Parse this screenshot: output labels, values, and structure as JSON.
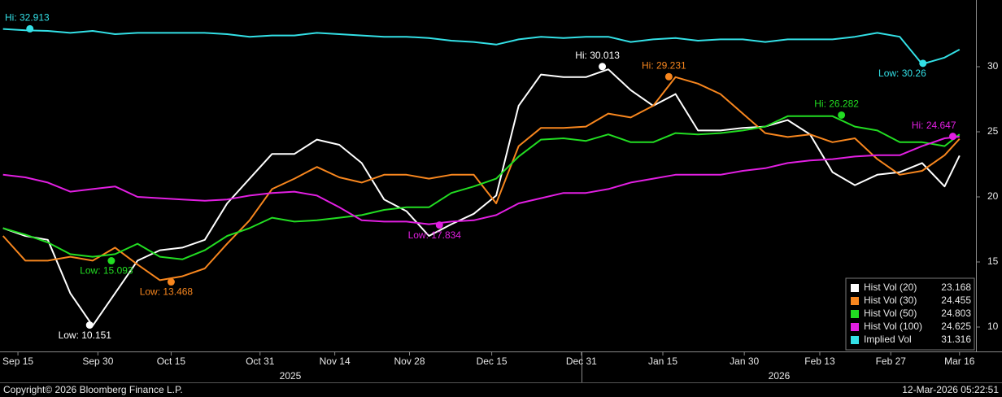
{
  "chart_data": {
    "type": "line",
    "x": [
      -2,
      1,
      4,
      7,
      10,
      13,
      16,
      19,
      22,
      25,
      28,
      31,
      34,
      37,
      40,
      43,
      46,
      49,
      52,
      55,
      58,
      61,
      64,
      67,
      70,
      73,
      76,
      79,
      82,
      85,
      88,
      91,
      94,
      97,
      100,
      103,
      106,
      109,
      112,
      115,
      118,
      121,
      124,
      126
    ],
    "xlim": [
      -2.4,
      128.2
    ],
    "xticks": [
      {
        "value": 0,
        "label": "Sep 15"
      },
      {
        "value": 10.7,
        "label": "Sep 30"
      },
      {
        "value": 20.5,
        "label": "Oct 15"
      },
      {
        "value": 32.4,
        "label": "Oct 31"
      },
      {
        "value": 42.4,
        "label": "Nov 14"
      },
      {
        "value": 52.4,
        "label": "Nov 28"
      },
      {
        "value": 63.4,
        "label": "Dec 15"
      },
      {
        "value": 75.4,
        "label": "Dec 31"
      },
      {
        "value": 86.3,
        "label": "Jan 15"
      },
      {
        "value": 97.2,
        "label": "Jan 30"
      },
      {
        "value": 107.3,
        "label": "Feb 13"
      },
      {
        "value": 116.8,
        "label": "Feb 27"
      },
      {
        "value": 126,
        "label": "Mar 16"
      }
    ],
    "year_labels": [
      "2025",
      "2026"
    ],
    "ylim": [
      8.125,
      35.125
    ],
    "yticks": [
      10,
      15,
      20,
      25,
      30
    ],
    "grid": false,
    "legend": "lower right",
    "series": [
      {
        "name": "Hist Vol (20)",
        "color": "#ffffff",
        "values": [
          17.6,
          17.0,
          16.7,
          12.6,
          10.1,
          12.6,
          15.1,
          15.9,
          16.1,
          16.7,
          19.5,
          21.4,
          23.3,
          23.3,
          24.4,
          24.0,
          22.6,
          19.8,
          18.9,
          17.0,
          17.9,
          18.7,
          20.1,
          27.0,
          29.4,
          29.2,
          29.2,
          29.8,
          28.2,
          27.0,
          27.9,
          25.1,
          25.1,
          25.3,
          25.4,
          25.9,
          24.8,
          21.9,
          20.9,
          21.7,
          21.9,
          22.6,
          20.8,
          23.168
        ],
        "hi": {
          "label": "Hi: 30.013",
          "x": 78.2,
          "value": 30.013
        },
        "low": {
          "label": "Low: 10.151",
          "x": 9.6,
          "value": 10.151
        }
      },
      {
        "name": "Hist Vol (30)",
        "color": "#f7861e",
        "values": [
          17.0,
          15.1,
          15.1,
          15.4,
          15.1,
          16.1,
          14.8,
          13.6,
          13.9,
          14.5,
          16.4,
          18.2,
          20.6,
          21.4,
          22.3,
          21.5,
          21.1,
          21.7,
          21.7,
          21.4,
          21.7,
          21.7,
          19.5,
          23.9,
          25.3,
          25.3,
          25.4,
          26.4,
          26.1,
          27.0,
          29.2,
          28.7,
          27.9,
          26.4,
          24.9,
          24.6,
          24.8,
          24.2,
          24.5,
          22.9,
          21.7,
          22.0,
          23.2,
          24.455
        ],
        "hi": {
          "label": "Hi: 29.231",
          "x": 87.1,
          "value": 29.231
        },
        "low": {
          "label": "Low: 13.468",
          "x": 20.5,
          "value": 13.468
        }
      },
      {
        "name": "Hist Vol (50)",
        "color": "#22dd22",
        "values": [
          17.6,
          17.1,
          16.5,
          15.6,
          15.4,
          15.6,
          16.4,
          15.4,
          15.2,
          15.9,
          17.0,
          17.6,
          18.4,
          18.1,
          18.2,
          18.4,
          18.6,
          19.0,
          19.2,
          19.2,
          20.3,
          20.8,
          21.4,
          23.1,
          24.4,
          24.5,
          24.3,
          24.8,
          24.2,
          24.2,
          24.9,
          24.8,
          24.9,
          25.1,
          25.4,
          26.2,
          26.2,
          26.2,
          25.4,
          25.1,
          24.2,
          24.2,
          23.9,
          24.803
        ],
        "hi": {
          "label": "Hi: 26.282",
          "x": 110.2,
          "value": 26.282
        },
        "low": {
          "label": "Low: 15.093",
          "x": 12.5,
          "value": 15.093
        }
      },
      {
        "name": "Hist Vol (100)",
        "color": "#e21fe2",
        "values": [
          21.7,
          21.5,
          21.1,
          20.4,
          20.6,
          20.8,
          20.0,
          19.9,
          19.8,
          19.7,
          19.8,
          20.1,
          20.3,
          20.4,
          20.1,
          19.2,
          18.2,
          18.1,
          18.1,
          17.9,
          18.1,
          18.2,
          18.6,
          19.5,
          19.9,
          20.3,
          20.3,
          20.6,
          21.1,
          21.4,
          21.7,
          21.7,
          21.7,
          22.0,
          22.2,
          22.6,
          22.8,
          22.9,
          23.1,
          23.2,
          23.2,
          23.9,
          24.5,
          24.625
        ],
        "hi": {
          "label": "Hi: 24.647",
          "x": 125.1,
          "value": 24.647
        },
        "low": {
          "label": "Low: 17.834",
          "x": 56.4,
          "value": 17.834
        }
      },
      {
        "name": "Implied Vol",
        "color": "#33e0e6",
        "values": [
          32.9,
          32.8,
          32.75,
          32.6,
          32.75,
          32.5,
          32.6,
          32.6,
          32.6,
          32.6,
          32.5,
          32.3,
          32.4,
          32.4,
          32.6,
          32.5,
          32.4,
          32.3,
          32.3,
          32.2,
          32.0,
          31.9,
          31.7,
          32.1,
          32.3,
          32.2,
          32.3,
          32.3,
          31.9,
          32.1,
          32.2,
          32.0,
          32.1,
          32.1,
          31.9,
          32.1,
          32.1,
          32.1,
          32.3,
          32.6,
          32.3,
          30.2,
          30.7,
          31.316
        ],
        "hi": {
          "label": "Hi: 32.913",
          "x": 1.6,
          "value": 32.913
        },
        "low": {
          "label": "Low: 30.26",
          "x": 121.1,
          "value": 30.26
        }
      }
    ],
    "copyright": "Copyright© 2026 Bloomberg Finance L.P.",
    "timestamp": "12-Mar-2026 05:22:51"
  }
}
